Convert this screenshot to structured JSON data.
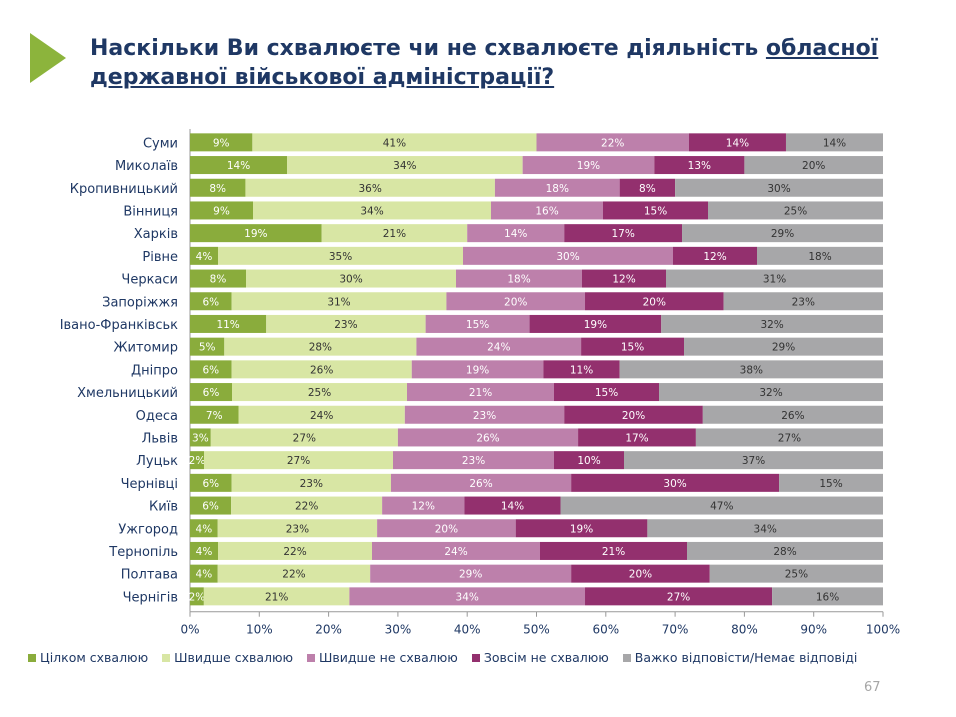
{
  "title": {
    "part1": "Наскільки Ви схвалюєте чи не схвалюєте діяльність ",
    "underlined": "обласної державної військової адміністрації?"
  },
  "page_number": "67",
  "chart_data": {
    "type": "bar",
    "stacked": true,
    "orientation": "horizontal",
    "xlim": [
      0,
      100
    ],
    "x_ticks": [
      "0%",
      "10%",
      "20%",
      "30%",
      "40%",
      "50%",
      "60%",
      "70%",
      "80%",
      "90%",
      "100%"
    ],
    "legend_position": "bottom",
    "categories": [
      "Суми",
      "Миколаїв",
      "Кропивницький",
      "Вінниця",
      "Харків",
      "Рівне",
      "Черкаси",
      "Запоріжжя",
      "Івано-Франківськ",
      "Житомир",
      "Дніпро",
      "Хмельницький",
      "Одеса",
      "Львів",
      "Луцьк",
      "Чернівці",
      "Київ",
      "Ужгород",
      "Тернопіль",
      "Полтава",
      "Чернігів"
    ],
    "series": [
      {
        "name": "Цілком схвалюю",
        "color": "#8aac3c",
        "text_color": "#ffffff",
        "values": [
          9,
          14,
          8,
          9,
          19,
          4,
          8,
          6,
          11,
          5,
          6,
          6,
          7,
          3,
          2,
          6,
          6,
          4,
          4,
          4,
          2
        ]
      },
      {
        "name": "Швидше схвалюю",
        "color": "#d8e6a4",
        "text_color": "#333333",
        "values": [
          41,
          34,
          36,
          34,
          21,
          35,
          30,
          31,
          23,
          28,
          26,
          25,
          24,
          27,
          27,
          23,
          22,
          23,
          22,
          22,
          21
        ]
      },
      {
        "name": "Швидше не схвалюю",
        "color": "#bd80ab",
        "text_color": "#ffffff",
        "values": [
          22,
          19,
          18,
          16,
          14,
          30,
          18,
          20,
          15,
          24,
          19,
          21,
          23,
          26,
          23,
          26,
          12,
          20,
          24,
          29,
          34
        ]
      },
      {
        "name": "Зовсім не схвалюю",
        "color": "#93306e",
        "text_color": "#ffffff",
        "values": [
          14,
          13,
          8,
          15,
          17,
          12,
          12,
          20,
          19,
          15,
          11,
          15,
          20,
          17,
          10,
          30,
          14,
          19,
          21,
          20,
          27
        ]
      },
      {
        "name": "Важко відповісти/Немає відповіді",
        "color": "#a7a7a9",
        "text_color": "#333333",
        "values": [
          14,
          20,
          30,
          25,
          29,
          18,
          31,
          23,
          32,
          29,
          38,
          32,
          26,
          27,
          37,
          15,
          47,
          34,
          28,
          25,
          16
        ]
      }
    ]
  }
}
